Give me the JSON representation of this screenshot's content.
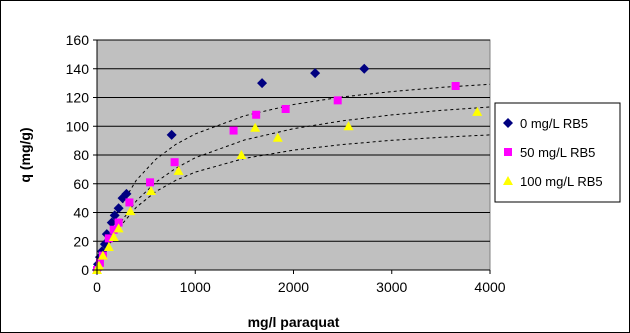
{
  "chart_data": {
    "type": "scatter",
    "title": "",
    "xlabel": "mg/l paraquat",
    "ylabel": "q (mg/g)",
    "xlim": [
      0,
      4000
    ],
    "ylim": [
      0,
      160
    ],
    "xticks": [
      0,
      1000,
      2000,
      3000,
      4000
    ],
    "yticks": [
      0,
      20,
      40,
      60,
      80,
      100,
      120,
      140,
      160
    ],
    "grid": "horizontal",
    "legend_position": "right",
    "series": [
      {
        "name": "0 mg/L RB5",
        "marker": "diamond",
        "color": "#000080",
        "points": [
          [
            0,
            0
          ],
          [
            10,
            4
          ],
          [
            30,
            9
          ],
          [
            50,
            13
          ],
          [
            80,
            18
          ],
          [
            100,
            25
          ],
          [
            150,
            33
          ],
          [
            180,
            38
          ],
          [
            220,
            43
          ],
          [
            260,
            50
          ],
          [
            300,
            53
          ],
          [
            760,
            94
          ],
          [
            1680,
            130
          ],
          [
            2220,
            137
          ],
          [
            2720,
            140
          ]
        ],
        "fit": [
          [
            0,
            0
          ],
          [
            200,
            39.8
          ],
          [
            400,
            62.5
          ],
          [
            600,
            77.1
          ],
          [
            800,
            87.3
          ],
          [
            1000,
            94.7
          ],
          [
            1500,
            107.3
          ],
          [
            2000,
            115.1
          ],
          [
            2500,
            120.4
          ],
          [
            3000,
            124.1
          ],
          [
            3500,
            127
          ],
          [
            4000,
            129.2
          ]
        ]
      },
      {
        "name": "50 mg/L RB5",
        "marker": "square",
        "color": "#FF00FF",
        "points": [
          [
            0,
            0
          ],
          [
            30,
            5
          ],
          [
            60,
            10
          ],
          [
            120,
            22
          ],
          [
            170,
            28
          ],
          [
            220,
            33
          ],
          [
            330,
            47
          ],
          [
            540,
            61
          ],
          [
            790,
            75
          ],
          [
            1390,
            97
          ],
          [
            1620,
            108
          ],
          [
            1920,
            112
          ],
          [
            2450,
            118
          ],
          [
            3650,
            128
          ]
        ],
        "fit": [
          [
            0,
            0
          ],
          [
            200,
            29.3
          ],
          [
            400,
            48.1
          ],
          [
            600,
            61.1
          ],
          [
            800,
            70.7
          ],
          [
            1000,
            78.1
          ],
          [
            1500,
            90.4
          ],
          [
            2000,
            98.3
          ],
          [
            2500,
            103.8
          ],
          [
            3000,
            107.9
          ],
          [
            3500,
            111
          ],
          [
            4000,
            113.4
          ]
        ]
      },
      {
        "name": "100 mg/L RB5",
        "marker": "triangle",
        "color": "#FFFF00",
        "points": [
          [
            0,
            0
          ],
          [
            20,
            3
          ],
          [
            60,
            10
          ],
          [
            120,
            16
          ],
          [
            170,
            23
          ],
          [
            220,
            29
          ],
          [
            340,
            41
          ],
          [
            550,
            55
          ],
          [
            830,
            69
          ],
          [
            1470,
            80
          ],
          [
            1610,
            99
          ],
          [
            1840,
            92
          ],
          [
            2560,
            100
          ],
          [
            3870,
            110
          ]
        ],
        "fit": [
          [
            0,
            0
          ],
          [
            200,
            27.4
          ],
          [
            400,
            43.7
          ],
          [
            600,
            54.6
          ],
          [
            800,
            62.3
          ],
          [
            1000,
            68.1
          ],
          [
            1500,
            77.6
          ],
          [
            2000,
            83.4
          ],
          [
            2500,
            87.3
          ],
          [
            3000,
            90.2
          ],
          [
            3500,
            92.3
          ],
          [
            4000,
            94
          ]
        ]
      }
    ]
  }
}
